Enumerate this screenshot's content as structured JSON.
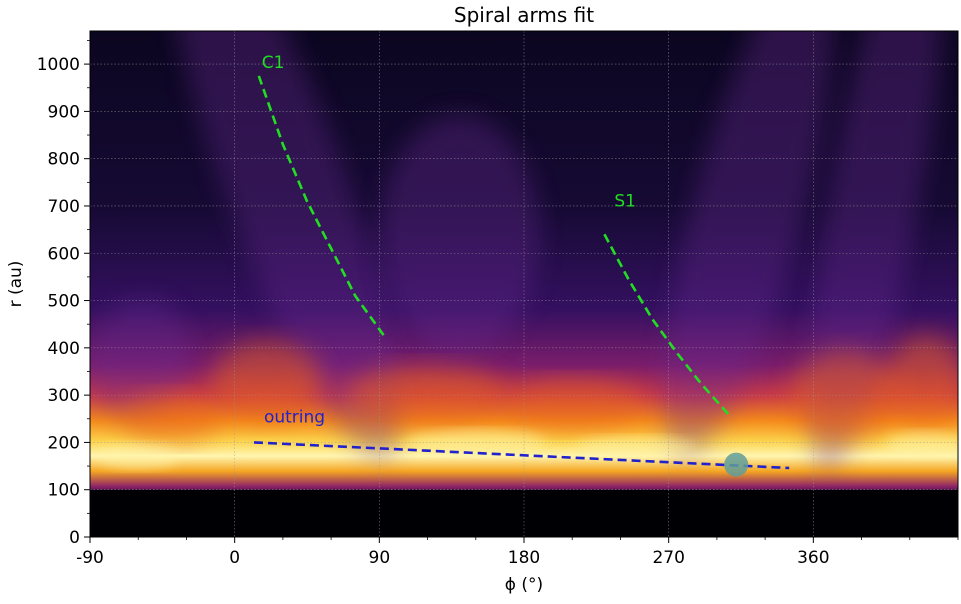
{
  "chart_data": {
    "type": "heatmap",
    "title": "Spiral arms fit",
    "xlabel": "ϕ (°)",
    "ylabel": "r (au)",
    "xlim": [
      -90,
      450
    ],
    "ylim": [
      0,
      1070
    ],
    "xticks": [
      -90,
      0,
      90,
      180,
      270,
      360
    ],
    "yticks": [
      0,
      100,
      200,
      300,
      400,
      500,
      600,
      700,
      800,
      900,
      1000
    ],
    "grid": true,
    "colormap": "inferno",
    "heatmap_features": [
      {
        "feature": "bright ring",
        "r_approx": 150
      },
      {
        "feature": "disc inner edge",
        "r_approx": 100
      }
    ],
    "fits": [
      {
        "label": "C1",
        "color": "#22dd22",
        "style": "dashed",
        "points": [
          [
            15,
            975
          ],
          [
            30,
            830
          ],
          [
            45,
            710
          ],
          [
            60,
            610
          ],
          [
            75,
            510
          ],
          [
            93,
            425
          ]
        ]
      },
      {
        "label": "S1",
        "color": "#22dd22",
        "style": "dashed",
        "points": [
          [
            230,
            640
          ],
          [
            245,
            545
          ],
          [
            260,
            460
          ],
          [
            275,
            390
          ],
          [
            290,
            325
          ],
          [
            307,
            260
          ]
        ]
      },
      {
        "label": "outring",
        "color": "#2222cc",
        "style": "dashed",
        "points": [
          [
            12,
            200
          ],
          [
            345,
            146
          ]
        ]
      }
    ],
    "markers": [
      {
        "x": 312,
        "y": 153,
        "color": "#5f9e9a"
      }
    ]
  }
}
